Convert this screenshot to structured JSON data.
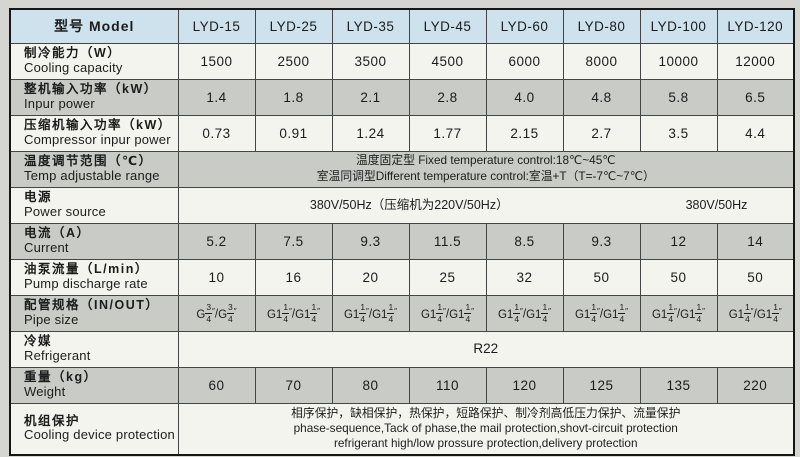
{
  "colors": {
    "page_background": "#d5d5d1",
    "header_blue": "#cde2ed",
    "stripe_gray": "#c9cbc6",
    "stripe_white": "#f4f4ef",
    "border": "#454545"
  },
  "table": {
    "header": {
      "label": "型号 Model",
      "models": [
        "LYD-15",
        "LYD-25",
        "LYD-35",
        "LYD-45",
        "LYD-60",
        "LYD-80",
        "LYD-100",
        "LYD-120"
      ]
    },
    "rows": [
      {
        "type": "values",
        "zh": "制冷能力（W）",
        "en": "Cooling capacity",
        "values": [
          "1500",
          "2500",
          "3500",
          "4500",
          "6000",
          "8000",
          "10000",
          "12000"
        ]
      },
      {
        "type": "values",
        "zh": "整机输入功率（kW）",
        "en": "Inpur power",
        "values": [
          "1.4",
          "1.8",
          "2.1",
          "2.8",
          "4.0",
          "4.8",
          "5.8",
          "6.5"
        ]
      },
      {
        "type": "values",
        "zh": "压缩机输入功率（kW）",
        "en": "Compressor inpur power",
        "values": [
          "0.73",
          "0.91",
          "1.24",
          "1.77",
          "2.15",
          "2.7",
          "3.5",
          "4.4"
        ]
      },
      {
        "type": "lines2",
        "zh": "温度调节范围（℃）",
        "en": "Temp adjustable range",
        "lines": [
          "温度固定型 Fixed temperature control:18℃~45℃",
          "室温同调型Different temperature control:室温+T（T=-7℃~7℃）"
        ]
      },
      {
        "type": "split",
        "zh": "电源",
        "en": "Power source",
        "left": "380V/50Hz（压缩机为220V/50Hz）",
        "right": "380V/50Hz",
        "left_span": 6,
        "right_span": 2
      },
      {
        "type": "values",
        "zh": "电流（A）",
        "en": "Current",
        "values": [
          "5.2",
          "7.5",
          "9.3",
          "11.5",
          "8.5",
          "9.3",
          "12",
          "14"
        ]
      },
      {
        "type": "values",
        "zh": "油泵流量（L/min）",
        "en": "Pump discharge rate",
        "values": [
          "10",
          "16",
          "20",
          "25",
          "32",
          "50",
          "50",
          "50"
        ]
      },
      {
        "type": "pipe",
        "zh": "配管规格（IN/OUT）",
        "en": "Pipe size",
        "values": [
          [
            [
              "G",
              "3",
              "4"
            ],
            [
              "G",
              "3",
              "4"
            ]
          ],
          [
            [
              "G1",
              "1",
              "4"
            ],
            [
              "G1",
              "1",
              "4"
            ]
          ],
          [
            [
              "G1",
              "1",
              "4"
            ],
            [
              "G1",
              "1",
              "4"
            ]
          ],
          [
            [
              "G1",
              "1",
              "4"
            ],
            [
              "G1",
              "1",
              "4"
            ]
          ],
          [
            [
              "G1",
              "1",
              "4"
            ],
            [
              "G1",
              "1",
              "4"
            ]
          ],
          [
            [
              "G1",
              "1",
              "4"
            ],
            [
              "G1",
              "1",
              "4"
            ]
          ],
          [
            [
              "G1",
              "1",
              "4"
            ],
            [
              "G1",
              "1",
              "4"
            ]
          ],
          [
            [
              "G1",
              "1",
              "4"
            ],
            [
              "G1",
              "1",
              "4"
            ]
          ]
        ]
      },
      {
        "type": "merged",
        "zh": "冷媒",
        "en": "Refrigerant",
        "text": "R22"
      },
      {
        "type": "values",
        "zh": "重量（kg）",
        "en": "Weight",
        "values": [
          "60",
          "70",
          "80",
          "110",
          "120",
          "125",
          "135",
          "220"
        ]
      },
      {
        "type": "lines3",
        "zh": "机组保护",
        "en": "Cooling device protection",
        "lines": [
          "相序保护，缺相保护，热保护，短路保护、制冷剂高低压力保护、流量保护",
          "phase-sequence,Tack of phase,the mail protection,shovt-circuit protection",
          "refrigerant high/low prossure protection,delivery protection"
        ]
      }
    ]
  }
}
